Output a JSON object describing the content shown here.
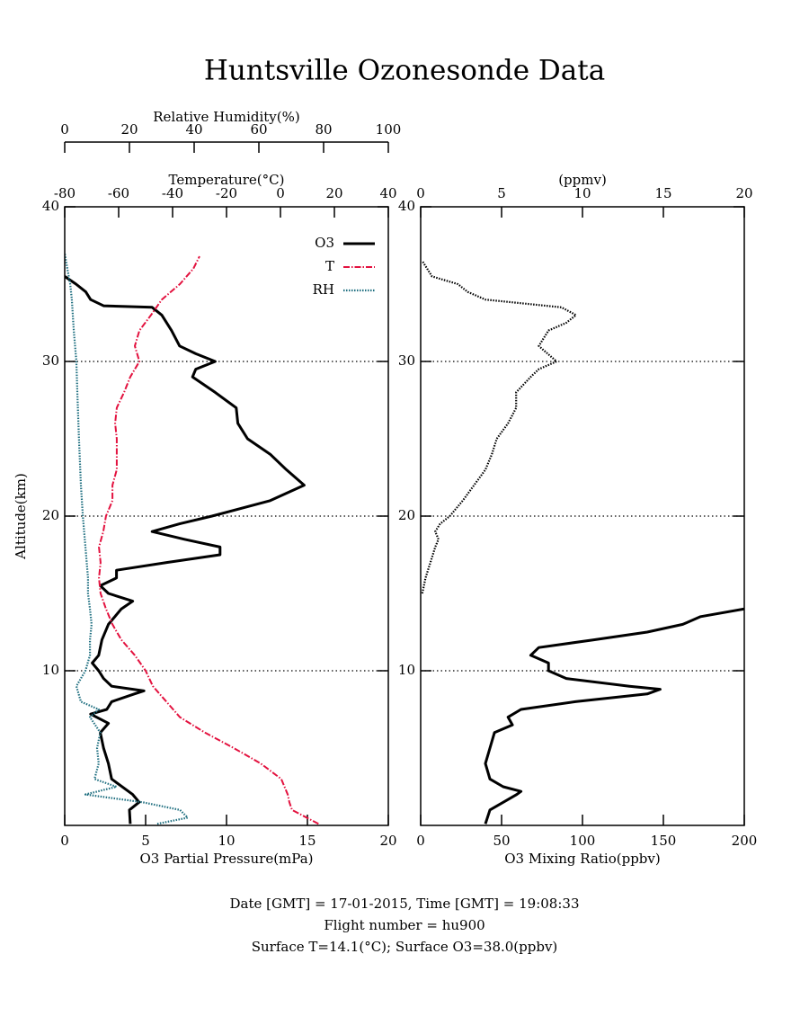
{
  "chart_data": [
    {
      "type": "line",
      "title": "Huntsville Ozonesonde Data",
      "xlabel": "O3 Partial Pressure(mPa)",
      "x2label": "Temperature(°C)",
      "x3label": "Relative Humidity(%)",
      "ylabel": "Altitude(km)",
      "xlim": [
        0,
        20
      ],
      "xticks": [
        0,
        5,
        10,
        15,
        20
      ],
      "x2lim": [
        -80,
        40
      ],
      "x2ticks": [
        -80,
        -60,
        -40,
        -20,
        0,
        20,
        40
      ],
      "x3lim": [
        0,
        100
      ],
      "x3ticks": [
        0,
        20,
        40,
        60,
        80,
        100
      ],
      "ylim": [
        0,
        40
      ],
      "yticks": [
        10,
        20,
        30,
        40
      ],
      "grid": true,
      "legend": "upper right",
      "series": [
        {
          "name": "O3",
          "color": "#000000",
          "style": "solid",
          "axis": "x",
          "altitude": [
            0.1,
            1,
            1.5,
            2,
            3,
            4,
            5,
            6,
            6.6,
            7.2,
            7.5,
            8,
            8.5,
            8.7,
            9,
            9.5,
            10,
            10.5,
            11,
            12,
            13,
            14,
            14.5,
            15,
            15.5,
            16,
            16.5,
            17,
            17.5,
            18,
            18.5,
            19,
            19.5,
            20,
            21,
            22,
            23,
            24,
            25,
            26,
            27,
            28,
            29,
            29.5,
            30,
            30.5,
            31,
            32,
            33,
            33.5,
            33.6,
            34,
            34.5,
            35,
            35.5
          ],
          "values": [
            4.05,
            4.0,
            4.6,
            4.2,
            2.9,
            2.7,
            2.4,
            2.2,
            2.7,
            1.6,
            2.6,
            2.9,
            4.3,
            4.9,
            2.9,
            2.4,
            2.1,
            1.7,
            2.1,
            2.3,
            2.7,
            3.5,
            4.2,
            2.7,
            2.2,
            3.2,
            3.2,
            6.3,
            9.6,
            9.6,
            7.4,
            5.4,
            7.1,
            9.1,
            12.7,
            14.8,
            13.7,
            12.7,
            11.3,
            10.7,
            10.6,
            9.3,
            7.9,
            8.1,
            9.3,
            8.1,
            7.1,
            6.6,
            6.0,
            5.4,
            2.4,
            1.6,
            1.3,
            0.7,
            0
          ]
        },
        {
          "name": "T",
          "color": "#e3123f",
          "style": "dashdot",
          "axis": "x2",
          "altitude": [
            0.1,
            1,
            1.5,
            2,
            3,
            4,
            5,
            6,
            7,
            8,
            9,
            10,
            11,
            12,
            13,
            14,
            15,
            16,
            17,
            18,
            19,
            20,
            21,
            22,
            23,
            24,
            25,
            26,
            27,
            28,
            29,
            30,
            31,
            32,
            33,
            34,
            35,
            36,
            36.8
          ],
          "values": [
            14.1,
            4.3,
            3.3,
            2.7,
            0.3,
            -7.3,
            -17.3,
            -28,
            -37.3,
            -42.3,
            -47.3,
            -50,
            -54,
            -59,
            -62.3,
            -64.7,
            -66.7,
            -67.3,
            -66.7,
            -67.3,
            -65.7,
            -64.7,
            -62.3,
            -62.3,
            -60.7,
            -60.7,
            -60.7,
            -61.3,
            -60.7,
            -58,
            -55.7,
            -52.3,
            -54,
            -52.3,
            -48,
            -44,
            -37.3,
            -32.3,
            -30
          ]
        },
        {
          "name": "RH",
          "color": "#1f6f80",
          "style": "dotted",
          "axis": "x3",
          "altitude": [
            0.1,
            0.5,
            1,
            1.5,
            2,
            2.5,
            3,
            4,
            5,
            6,
            7,
            7.5,
            8,
            9,
            10,
            11,
            12,
            13,
            14,
            15,
            16,
            18,
            20,
            22,
            25,
            28,
            30,
            32,
            34,
            35,
            36,
            37
          ],
          "values": [
            28.6,
            38,
            35.6,
            24,
            6.4,
            16,
            9.2,
            10.5,
            10,
            11,
            7.8,
            10.5,
            5,
            3.6,
            6.4,
            7.8,
            7.8,
            8.3,
            7.8,
            7.2,
            7.2,
            6.4,
            5.6,
            5,
            4.4,
            3.9,
            3.6,
            2.8,
            2.2,
            1.7,
            0.8,
            0
          ]
        }
      ]
    },
    {
      "type": "line",
      "xlabel": "O3 Mixing Ratio(ppbv)",
      "x2label": "(ppmv)",
      "xlim": [
        0,
        200
      ],
      "xticks": [
        0,
        50,
        100,
        150,
        200
      ],
      "x2lim": [
        0,
        20
      ],
      "x2ticks": [
        0,
        5,
        10,
        15,
        20
      ],
      "ylim": [
        0,
        40
      ],
      "yticks": [
        10,
        20,
        30,
        40
      ],
      "grid": true,
      "series": [
        {
          "color": "#000000",
          "style": "solid",
          "axis": "x",
          "altitude": [
            0.1,
            1,
            2,
            2.2,
            2.5,
            3,
            4,
            5,
            6,
            6.5,
            7,
            7.5,
            8,
            8.5,
            8.8,
            9,
            9.5,
            10,
            10.5,
            11,
            11.5,
            12,
            12.5,
            13,
            13.5,
            14
          ],
          "values": [
            40,
            42.8,
            59.4,
            62,
            51,
            42.8,
            40,
            42.8,
            45.6,
            56.7,
            54,
            62,
            95.6,
            140,
            148,
            129,
            90,
            79,
            79,
            68,
            73,
            107,
            140,
            162,
            173,
            200
          ]
        },
        {
          "color": "#000000",
          "style": "dotted",
          "axis": "x2",
          "altitude": [
            15,
            16,
            17,
            18,
            18.5,
            19,
            19.5,
            20,
            21,
            22,
            23,
            24,
            25,
            26,
            27,
            28,
            29,
            29.5,
            30,
            31,
            32,
            32.5,
            33,
            33.5,
            34,
            34.5,
            35,
            35.5,
            36,
            36.5
          ],
          "values": [
            0.1,
            0.3,
            0.6,
            0.9,
            1.1,
            0.9,
            1.2,
            1.8,
            2.6,
            3.3,
            4.0,
            4.4,
            4.7,
            5.4,
            5.9,
            5.9,
            6.8,
            7.3,
            8.4,
            7.3,
            7.9,
            9.0,
            9.6,
            8.7,
            4.0,
            2.9,
            2.3,
            0.7,
            0.4,
            0.1
          ]
        }
      ]
    }
  ],
  "footer": [
    "Date [GMT] = 17-01-2015,  Time [GMT] = 19:08:33",
    "Flight number = hu900",
    "Surface T=14.1(°C); Surface O3=38.0(ppbv)"
  ]
}
